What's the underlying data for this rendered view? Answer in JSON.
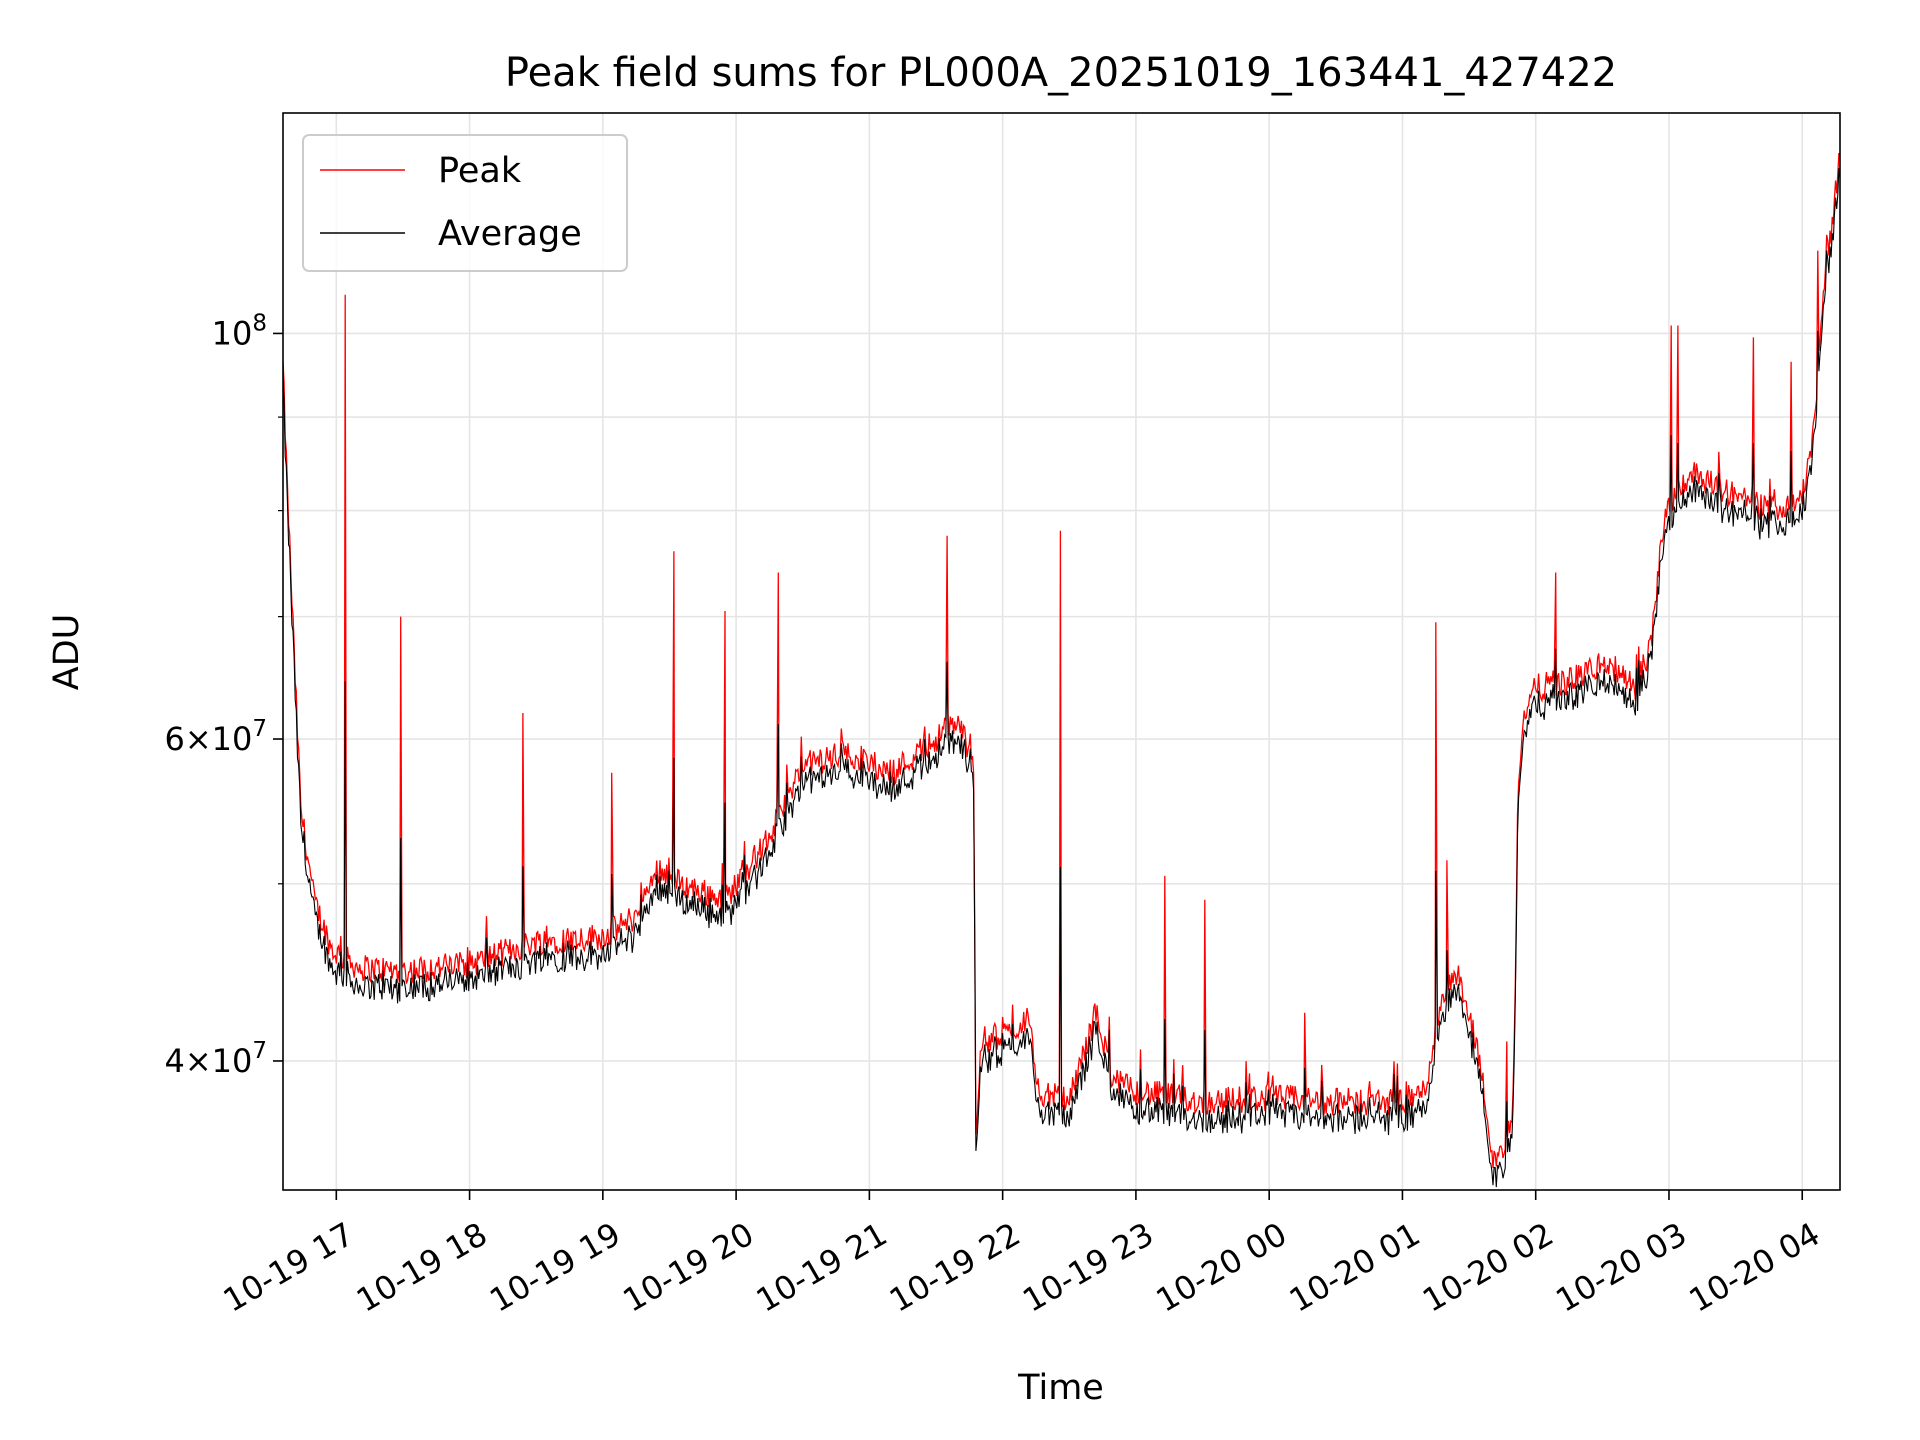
{
  "chart_data": {
    "type": "line",
    "title": "Peak field sums for PL000A_20251019_163441_427422",
    "xlabel": "Time",
    "ylabel": "ADU",
    "yscale": "log",
    "ylim": [
      34000000,
      132000000
    ],
    "xlim": [
      "2025-10-19 16:36",
      "2025-10-20 04:17"
    ],
    "x_ticks": [
      {
        "t": "2025-10-19 17:00",
        "label": "10-19 17"
      },
      {
        "t": "2025-10-19 18:00",
        "label": "10-19 18"
      },
      {
        "t": "2025-10-19 19:00",
        "label": "10-19 19"
      },
      {
        "t": "2025-10-19 20:00",
        "label": "10-19 20"
      },
      {
        "t": "2025-10-19 21:00",
        "label": "10-19 21"
      },
      {
        "t": "2025-10-19 22:00",
        "label": "10-19 22"
      },
      {
        "t": "2025-10-19 23:00",
        "label": "10-19 23"
      },
      {
        "t": "2025-10-20 00:00",
        "label": "10-20 00"
      },
      {
        "t": "2025-10-20 01:00",
        "label": "10-20 01"
      },
      {
        "t": "2025-10-20 02:00",
        "label": "10-20 02"
      },
      {
        "t": "2025-10-20 03:00",
        "label": "10-20 03"
      },
      {
        "t": "2025-10-20 04:00",
        "label": "10-20 04"
      }
    ],
    "y_major_ticks": [
      {
        "value": 40000000,
        "mantissa": "4",
        "exp": "7"
      },
      {
        "value": 60000000,
        "mantissa": "6",
        "exp": "7"
      },
      {
        "value": 100000000,
        "mantissa": "",
        "exp": "8"
      }
    ],
    "y_minor_gridlines": [
      50000000,
      70000000,
      80000000,
      90000000
    ],
    "grid": true,
    "legend_position": "top-left",
    "series": [
      {
        "name": "Peak",
        "color": "#ff0000",
        "base_points": [
          [
            "2025-10-19 16:36",
            96000000
          ],
          [
            "2025-10-19 16:38",
            82000000
          ],
          [
            "2025-10-19 16:41",
            67000000
          ],
          [
            "2025-10-19 16:44",
            55000000
          ],
          [
            "2025-10-19 16:50",
            49000000
          ],
          [
            "2025-10-19 16:58",
            46000000
          ],
          [
            "2025-10-19 17:10",
            45000000
          ],
          [
            "2025-10-19 17:30",
            44800000
          ],
          [
            "2025-10-19 18:00",
            45200000
          ],
          [
            "2025-10-19 18:30",
            46500000
          ],
          [
            "2025-10-19 19:00",
            46800000
          ],
          [
            "2025-10-19 19:15",
            48000000
          ],
          [
            "2025-10-19 19:25",
            51000000
          ],
          [
            "2025-10-19 19:35",
            50000000
          ],
          [
            "2025-10-19 19:55",
            49000000
          ],
          [
            "2025-10-19 20:15",
            53000000
          ],
          [
            "2025-10-19 20:30",
            58000000
          ],
          [
            "2025-10-19 20:50",
            59000000
          ],
          [
            "2025-10-19 21:10",
            57500000
          ],
          [
            "2025-10-19 21:30",
            60000000
          ],
          [
            "2025-10-19 21:40",
            61500000
          ],
          [
            "2025-10-19 21:47",
            58000000
          ],
          [
            "2025-10-19 21:48",
            36000000
          ],
          [
            "2025-10-19 21:50",
            41000000
          ],
          [
            "2025-10-19 22:05",
            41500000
          ],
          [
            "2025-10-19 22:12",
            42500000
          ],
          [
            "2025-10-19 22:15",
            38500000
          ],
          [
            "2025-10-19 22:30",
            38000000
          ],
          [
            "2025-10-19 22:42",
            42500000
          ],
          [
            "2025-10-19 22:50",
            39000000
          ],
          [
            "2025-10-19 23:00",
            38500000
          ],
          [
            "2025-10-19 23:30",
            38000000
          ],
          [
            "2025-10-20 00:00",
            38200000
          ],
          [
            "2025-10-20 00:30",
            38000000
          ],
          [
            "2025-10-20 01:00",
            38000000
          ],
          [
            "2025-10-20 01:10",
            38500000
          ],
          [
            "2025-10-20 01:18",
            43500000
          ],
          [
            "2025-10-20 01:25",
            44500000
          ],
          [
            "2025-10-20 01:35",
            40000000
          ],
          [
            "2025-10-20 01:40",
            35500000
          ],
          [
            "2025-10-20 01:45",
            35500000
          ],
          [
            "2025-10-20 01:50",
            38000000
          ],
          [
            "2025-10-20 01:52",
            57000000
          ],
          [
            "2025-10-20 01:55",
            62000000
          ],
          [
            "2025-10-20 02:00",
            64000000
          ],
          [
            "2025-10-20 02:15",
            64500000
          ],
          [
            "2025-10-20 02:30",
            66000000
          ],
          [
            "2025-10-20 02:45",
            64000000
          ],
          [
            "2025-10-20 02:52",
            67500000
          ],
          [
            "2025-10-20 02:58",
            80000000
          ],
          [
            "2025-10-20 03:10",
            84000000
          ],
          [
            "2025-10-20 03:30",
            81500000
          ],
          [
            "2025-10-20 03:45",
            80000000
          ],
          [
            "2025-10-20 04:00",
            81500000
          ],
          [
            "2025-10-20 04:05",
            88000000
          ],
          [
            "2025-10-20 04:10",
            106000000
          ],
          [
            "2025-10-20 04:17",
            125000000
          ]
        ],
        "spikes": [
          [
            "2025-10-19 17:04",
            105000000
          ],
          [
            "2025-10-19 17:29",
            70000000
          ],
          [
            "2025-10-19 18:24",
            62000000
          ],
          [
            "2025-10-19 19:04",
            57500000
          ],
          [
            "2025-10-19 19:32",
            76000000
          ],
          [
            "2025-10-19 19:55",
            70500000
          ],
          [
            "2025-10-19 20:19",
            74000000
          ],
          [
            "2025-10-19 21:35",
            77500000
          ],
          [
            "2025-10-19 22:26",
            78000000
          ],
          [
            "2025-10-19 23:13",
            50500000
          ],
          [
            "2025-10-19 23:31",
            49000000
          ],
          [
            "2025-10-20 00:16",
            42500000
          ],
          [
            "2025-10-20 01:15",
            69500000
          ],
          [
            "2025-10-20 01:20",
            51500000
          ],
          [
            "2025-10-20 01:47",
            41000000
          ],
          [
            "2025-10-20 02:09",
            74000000
          ],
          [
            "2025-10-20 03:01",
            101000000
          ],
          [
            "2025-10-20 03:04",
            101000000
          ],
          [
            "2025-10-20 03:38",
            99500000
          ],
          [
            "2025-10-20 03:55",
            96500000
          ],
          [
            "2025-10-20 04:07",
            111000000
          ]
        ]
      },
      {
        "name": "Average",
        "color": "#000000",
        "offset_ratio": 0.985,
        "spike_ratio": 0.82
      }
    ]
  }
}
